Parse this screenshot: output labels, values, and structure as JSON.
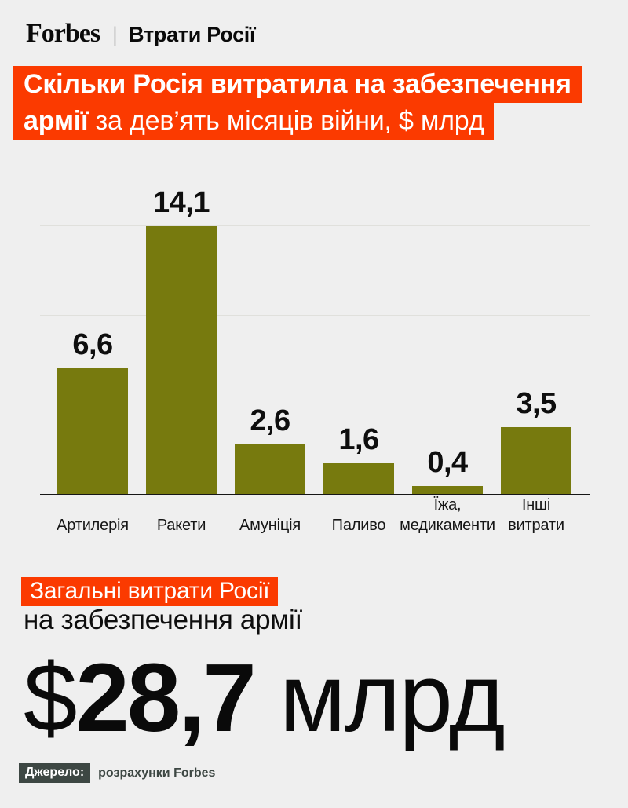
{
  "header": {
    "logo": "Forbes",
    "separator": "|",
    "section": "Втрати Росії"
  },
  "headline": {
    "line1_bold": "Скільки Росія витратила на забезпечення",
    "line2_bold": "армії",
    "line2_rest": " за дев’ять місяців війни, $ млрд"
  },
  "chart_data": {
    "type": "bar",
    "title": "Скільки Росія витратила на забезпечення армії за дев’ять місяців війни, $ млрд",
    "categories": [
      "Артилерія",
      "Ракети",
      "Амуніція",
      "Паливо",
      "Їжа,\nмедикаменти",
      "Інші\nвитрати"
    ],
    "values": [
      6.6,
      14.1,
      2.6,
      1.6,
      0.4,
      3.5
    ],
    "value_labels": [
      "6,6",
      "14,1",
      "2,6",
      "1,6",
      "0,4",
      "3,5"
    ],
    "xlabel": "",
    "ylabel": "",
    "ylim": [
      0,
      14.1
    ],
    "grid": true,
    "gridline_count": 3,
    "legend": false,
    "bar_color": "#777A0E"
  },
  "total": {
    "highlight": "Загальні витрати Росії",
    "subtitle": "на забезпечення армії",
    "currency": "$",
    "amount": "28,7",
    "unit": " млрд"
  },
  "footer": {
    "source_label": "Джерело:",
    "source_value": "розрахунки Forbes"
  },
  "colors": {
    "accent_red": "#FB3A00",
    "bar_olive": "#777A0E",
    "background": "#EFEFEF",
    "badge": "#3D4743",
    "gridline": "#E0E0DC"
  }
}
